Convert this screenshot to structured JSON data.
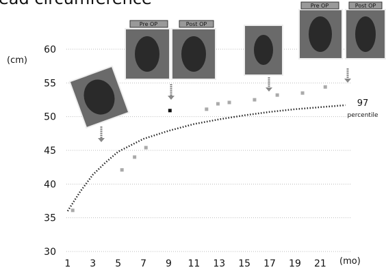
{
  "chart_data": {
    "type": "scatter",
    "title": "ead circumference",
    "y_unit": "(cm)",
    "x_unit": "(mo)",
    "annotation": {
      "value": "97",
      "label": "percentile"
    },
    "image_labels": [
      "Pre OP",
      "Post OP",
      "Pre OP",
      "Post OP"
    ],
    "x": [
      1.4,
      5.3,
      6.3,
      7.2,
      9.1,
      12.0,
      12.9,
      13.8,
      15.8,
      17.6,
      19.6,
      21.4
    ],
    "values": [
      36.1,
      42.1,
      44.0,
      45.4,
      50.9,
      51.1,
      51.9,
      52.1,
      52.5,
      53.2,
      53.5,
      54.4
    ],
    "colors": [
      "#aaa",
      "#aaa",
      "#aaa",
      "#aaa",
      "#111",
      "#aaa",
      "#aaa",
      "#aaa",
      "#aaa",
      "#aaa",
      "#aaa",
      "#aaa"
    ],
    "percentile_curve": {
      "x": [
        1,
        2,
        3,
        4,
        5,
        7,
        9,
        11,
        13,
        15,
        17,
        19,
        21,
        23
      ],
      "values": [
        36.0,
        38.9,
        41.4,
        43.2,
        44.8,
        46.7,
        47.9,
        48.9,
        49.6,
        50.2,
        50.7,
        51.1,
        51.4,
        51.7
      ],
      "color": "#222"
    },
    "xlim": [
      0.9,
      23.5
    ],
    "ylim": [
      30,
      60
    ],
    "xticks": [
      1,
      3,
      5,
      7,
      9,
      11,
      13,
      15,
      17,
      19,
      21
    ],
    "yticks": [
      30,
      35,
      40,
      45,
      50,
      55,
      60
    ],
    "grid": true
  }
}
